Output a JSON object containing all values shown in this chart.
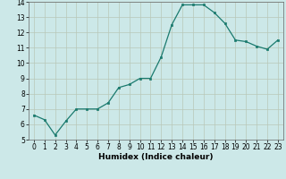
{
  "x": [
    0,
    1,
    2,
    3,
    4,
    5,
    6,
    7,
    8,
    9,
    10,
    11,
    12,
    13,
    14,
    15,
    16,
    17,
    18,
    19,
    20,
    21,
    22,
    23
  ],
  "y": [
    6.6,
    6.3,
    5.3,
    6.2,
    7.0,
    7.0,
    7.0,
    7.4,
    8.4,
    8.6,
    9.0,
    9.0,
    10.4,
    12.5,
    13.8,
    13.8,
    13.8,
    13.3,
    12.6,
    11.5,
    11.4,
    11.1,
    10.9,
    11.5
  ],
  "xlabel": "Humidex (Indice chaleur)",
  "ylabel": "",
  "xlim": [
    -0.5,
    23.5
  ],
  "ylim": [
    5,
    14
  ],
  "yticks": [
    5,
    6,
    7,
    8,
    9,
    10,
    11,
    12,
    13,
    14
  ],
  "xticks": [
    0,
    1,
    2,
    3,
    4,
    5,
    6,
    7,
    8,
    9,
    10,
    11,
    12,
    13,
    14,
    15,
    16,
    17,
    18,
    19,
    20,
    21,
    22,
    23
  ],
  "line_color": "#1a7a6e",
  "marker_color": "#1a7a6e",
  "bg_color": "#cce8e8",
  "grid_color": "#b8c8b8",
  "label_fontsize": 6.5,
  "tick_fontsize": 5.5
}
